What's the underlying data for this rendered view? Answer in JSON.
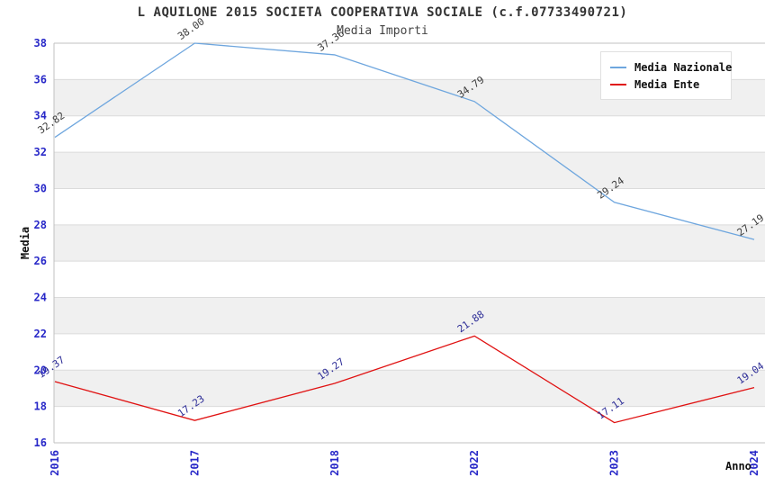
{
  "title": "L AQUILONE 2015 SOCIETA COOPERATIVA SOCIALE (c.f.07733490721)",
  "subtitle": "Media Importi",
  "chart_data": {
    "type": "line",
    "categories": [
      "2016",
      "2017",
      "2018",
      "2022",
      "2023",
      "2024"
    ],
    "series": [
      {
        "name": "Media Nazionale",
        "color": "#6EA6DE",
        "label_color": "#3A3A3A",
        "values": [
          32.82,
          38.0,
          37.36,
          34.79,
          29.24,
          27.19
        ]
      },
      {
        "name": "Media Ente",
        "color": "#E01212",
        "label_color": "#2B2B96",
        "values": [
          19.37,
          17.23,
          19.27,
          21.88,
          17.11,
          19.04
        ]
      }
    ],
    "xlabel": "Anno",
    "ylabel": "Media",
    "ylim": [
      16,
      38
    ],
    "yticks": [
      16,
      18,
      20,
      22,
      24,
      26,
      28,
      30,
      32,
      34,
      36,
      38
    ],
    "grid": true,
    "legend_position": "top-right",
    "band_colors": [
      "#FFFFFF",
      "#F0F0F0"
    ],
    "gridline_color": "#DBDBDB",
    "spine_color": "#C0C0C0",
    "tick_color": "#2828C8",
    "value_label_decimals": 2
  }
}
